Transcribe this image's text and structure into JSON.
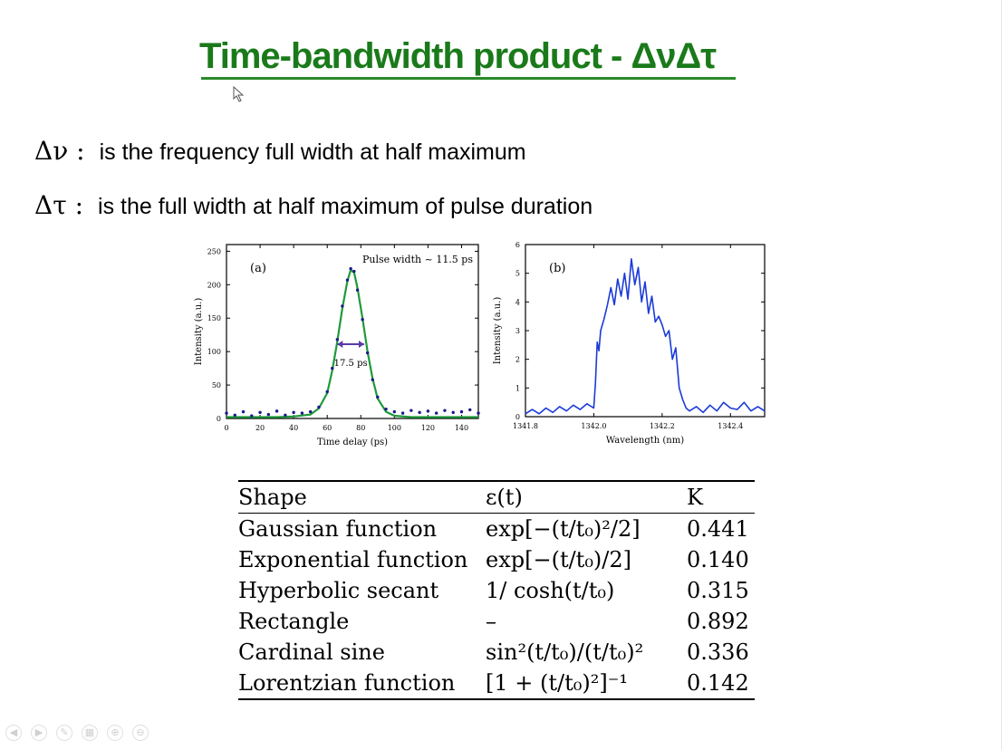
{
  "slide": {
    "title": "Time-bandwidth product - ΔνΔτ",
    "definitions": [
      {
        "symbol": "Δν :",
        "text": "is the frequency full width at half maximum"
      },
      {
        "symbol": "Δτ :",
        "text": "is the full width at half maximum of pulse duration"
      }
    ]
  },
  "chart_data": [
    {
      "type": "line",
      "panel_label": "(a)",
      "annotation_top": "Pulse width ~ 11.5 ps",
      "annotation_fwhm": "17.5 ps",
      "xlabel": "Time delay (ps)",
      "ylabel": "Intensity (a.u.)",
      "xlim": [
        0,
        150
      ],
      "ylim": [
        0,
        260
      ],
      "xticks": [
        0,
        20,
        40,
        60,
        80,
        100,
        120,
        140
      ],
      "yticks": [
        0,
        50,
        100,
        150,
        200,
        250
      ],
      "series": [
        {
          "color": "#1f9a3a",
          "x": [
            0,
            10,
            20,
            30,
            40,
            50,
            55,
            60,
            63,
            66,
            69,
            72,
            74,
            76,
            78,
            81,
            84,
            87,
            90,
            95,
            100,
            110,
            120,
            130,
            140,
            150
          ],
          "y": [
            2,
            2,
            2,
            2,
            3,
            6,
            15,
            38,
            72,
            115,
            165,
            205,
            222,
            218,
            195,
            150,
            100,
            60,
            30,
            10,
            4,
            2,
            2,
            2,
            2,
            2
          ]
        },
        {
          "color": "#1a1a8a",
          "marker": "dot",
          "x": [
            0,
            5,
            10,
            15,
            20,
            25,
            30,
            35,
            40,
            45,
            50,
            55,
            60,
            63,
            66,
            69,
            72,
            74,
            76,
            78,
            81,
            84,
            87,
            90,
            95,
            100,
            105,
            110,
            115,
            120,
            125,
            130,
            135,
            140,
            145,
            150
          ],
          "y": [
            8,
            5,
            10,
            4,
            9,
            6,
            11,
            5,
            9,
            8,
            10,
            17,
            40,
            75,
            118,
            168,
            207,
            224,
            220,
            192,
            148,
            98,
            58,
            32,
            14,
            10,
            8,
            12,
            9,
            11,
            8,
            12,
            9,
            10,
            13,
            8
          ]
        }
      ]
    },
    {
      "type": "line",
      "panel_label": "(b)",
      "xlabel": "Wavelength (nm)",
      "ylabel": "Intensity (a.u.)",
      "xlim": [
        1341.8,
        1342.5
      ],
      "ylim": [
        0,
        6
      ],
      "xticks": [
        1341.8,
        1342.0,
        1342.2,
        1342.4
      ],
      "yticks": [
        0,
        1,
        2,
        3,
        4,
        5,
        6
      ],
      "series": [
        {
          "color": "#1a3ad9",
          "x": [
            1341.8,
            1341.82,
            1341.84,
            1341.86,
            1341.88,
            1341.9,
            1341.92,
            1341.94,
            1341.96,
            1341.98,
            1342.0,
            1342.005,
            1342.01,
            1342.015,
            1342.02,
            1342.03,
            1342.04,
            1342.05,
            1342.06,
            1342.07,
            1342.08,
            1342.09,
            1342.1,
            1342.11,
            1342.12,
            1342.13,
            1342.14,
            1342.15,
            1342.16,
            1342.17,
            1342.18,
            1342.19,
            1342.2,
            1342.21,
            1342.22,
            1342.23,
            1342.24,
            1342.25,
            1342.26,
            1342.27,
            1342.28,
            1342.3,
            1342.32,
            1342.34,
            1342.36,
            1342.38,
            1342.4,
            1342.42,
            1342.44,
            1342.46,
            1342.48,
            1342.5
          ],
          "y": [
            0.1,
            0.25,
            0.1,
            0.3,
            0.15,
            0.35,
            0.2,
            0.4,
            0.25,
            0.45,
            0.3,
            1.2,
            2.6,
            2.3,
            3.0,
            3.4,
            3.9,
            4.5,
            3.9,
            4.8,
            4.2,
            5.0,
            4.1,
            5.5,
            4.6,
            5.2,
            4.0,
            4.7,
            3.6,
            4.2,
            3.3,
            3.5,
            3.2,
            2.8,
            3.0,
            2.0,
            2.4,
            1.0,
            0.6,
            0.3,
            0.2,
            0.35,
            0.15,
            0.4,
            0.2,
            0.5,
            0.3,
            0.25,
            0.5,
            0.2,
            0.35,
            0.2
          ]
        }
      ]
    }
  ],
  "table": {
    "headers": [
      "Shape",
      "ε(t)",
      "K"
    ],
    "rows": [
      [
        "Gaussian function",
        "exp[−(t/t₀)²/2]",
        "0.441"
      ],
      [
        "Exponential function",
        "exp[−(t/t₀)/2]",
        "0.140"
      ],
      [
        "Hyperbolic secant",
        "1/ cosh(t/t₀)",
        "0.315"
      ],
      [
        "Rectangle",
        "–",
        "0.892"
      ],
      [
        "Cardinal sine",
        "sin²(t/t₀)/(t/t₀)²",
        "0.336"
      ],
      [
        "Lorentzian function",
        "[1 + (t/t₀)²]⁻¹",
        "0.142"
      ]
    ]
  },
  "toolbar": {
    "icons": [
      "prev-arrow-icon",
      "next-arrow-icon",
      "pen-icon",
      "slides-icon",
      "zoom-icon",
      "more-icon"
    ],
    "glyphs": [
      "◀",
      "▶",
      "✎",
      "▦",
      "⊕",
      "⊖"
    ]
  }
}
